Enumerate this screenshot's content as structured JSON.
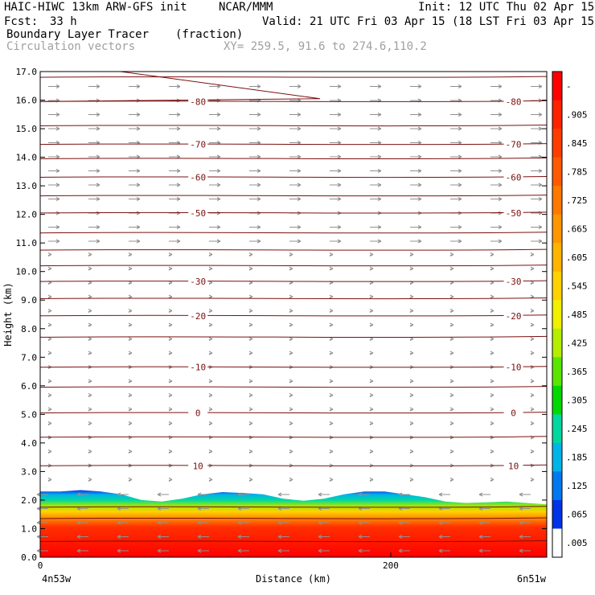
{
  "header": {
    "model": "HAIC-HIWC 13km ARW-GFS init",
    "org": "NCAR/MMM",
    "init": "Init: 12 UTC Thu 02 Apr 15",
    "fcst_label": "Fcst:",
    "fcst_value": "33 h",
    "valid": "Valid: 21 UTC Fri 03 Apr 15 (18 LST Fri 03 Apr 15)",
    "field": "Boundary Layer Tracer",
    "units": "(fraction)",
    "vectors": "Circulation vectors",
    "xy": "XY= 259.5, 91.6 to 274.6,110.2"
  },
  "colors": {
    "contour": "#7a1010",
    "vector": "#909090",
    "text_gray": "#a0a0a0"
  },
  "chart_data": {
    "type": "heatmap",
    "xlabel": "Distance (km)",
    "ylabel": "Height (km)",
    "xlim": [
      0,
      289
    ],
    "ylim": [
      0,
      17
    ],
    "y_ticks": [
      "0.0",
      "1.0",
      "2.0",
      "3.0",
      "4.0",
      "5.0",
      "6.0",
      "7.0",
      "8.0",
      "9.0",
      "10.0",
      "11.0",
      "12.0",
      "13.0",
      "14.0",
      "15.0",
      "16.0",
      "17.0"
    ],
    "x_ticks": [
      {
        "value": 0,
        "label": "0"
      },
      {
        "value": 200,
        "label": "200"
      }
    ],
    "endpoints": {
      "left": "4n53w",
      "right": "6n51w"
    },
    "colorbar": {
      "labels": [
        "-",
        ".905",
        ".845",
        ".785",
        ".725",
        ".665",
        ".605",
        ".545",
        ".485",
        ".425",
        ".365",
        ".305",
        ".245",
        ".185",
        ".125",
        ".065",
        ".005"
      ],
      "colors": [
        "#ff0000",
        "#ff2200",
        "#ff3d00",
        "#ff5a00",
        "#ff7800",
        "#ff9600",
        "#ffb400",
        "#ffd200",
        "#f0f000",
        "#b4ee00",
        "#5ae600",
        "#00d800",
        "#00d8a0",
        "#00b4e8",
        "#0078f0",
        "#0032e6",
        "#ffffff"
      ]
    },
    "contours": [
      {
        "label": "10",
        "height": 3.2
      },
      {
        "label": "0",
        "height": 5.05
      },
      {
        "label": "-10",
        "height": 6.65
      },
      {
        "label": "-20",
        "height": 8.45
      },
      {
        "label": "-30",
        "height": 9.65
      },
      {
        "label": "-50",
        "height": 12.05
      },
      {
        "label": "-60",
        "height": 13.3
      },
      {
        "label": "-70",
        "height": 14.45
      },
      {
        "label": "-80",
        "height": 15.95
      }
    ],
    "contour_label_positions_km": [
      90,
      270
    ],
    "boundary_layer_top_km": 2.1
  }
}
